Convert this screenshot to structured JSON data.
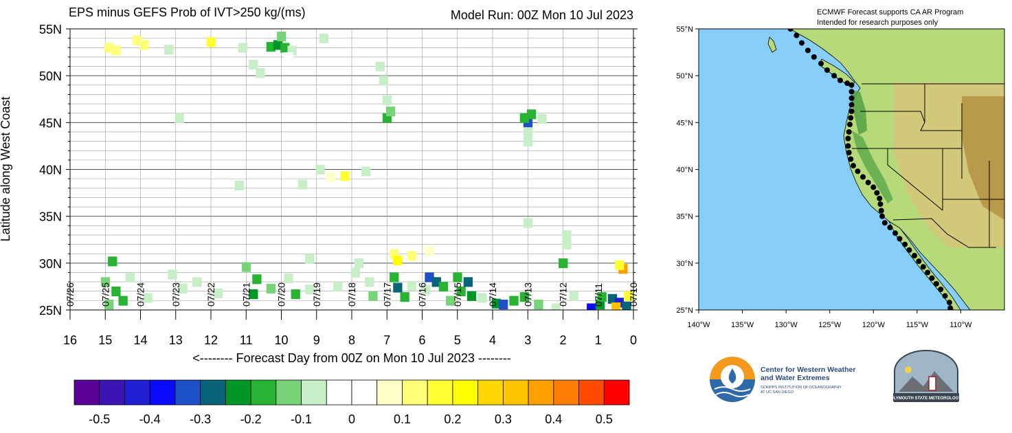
{
  "chart_data": {
    "type": "heatmap",
    "title": "EPS minus GEFS Prob of IVT>250 kg/(ms)",
    "model_run": "Model Run: 00Z Mon 10 Jul 2023",
    "xlabel": "<-------- Forecast Day from 00Z on Mon 10 Jul 2023 --------",
    "ylabel": "Latitude along West Coast",
    "x_ticks": [
      "16",
      "15",
      "14",
      "13",
      "12",
      "11",
      "10",
      "9",
      "8",
      "7",
      "6",
      "5",
      "4",
      "3",
      "2",
      "1",
      "0"
    ],
    "date_labels": [
      "07/26",
      "07/25",
      "07/24",
      "07/23",
      "07/22",
      "07/21",
      "07/20",
      "07/19",
      "07/18",
      "07/17",
      "07/16",
      "07/15",
      "07/14",
      "07/13",
      "07/12",
      "07/11",
      "07/10"
    ],
    "y_ticks": [
      "55N",
      "50N",
      "45N",
      "40N",
      "35N",
      "30N",
      "25N"
    ],
    "xlim": [
      16,
      0
    ],
    "ylim": [
      25,
      55
    ],
    "colorbar": {
      "ticks": [
        "-0.5",
        "-0.4",
        "-0.3",
        "-0.2",
        "-0.1",
        "0",
        "0.1",
        "0.2",
        "0.3",
        "0.4",
        "0.5"
      ],
      "colors": [
        "#5a0096",
        "#3c14b4",
        "#2020d2",
        "#0a0aff",
        "#1e50c8",
        "#0a6478",
        "#009628",
        "#28b432",
        "#78d278",
        "#c8eec8",
        "#ffffff",
        "#ffffff",
        "#ffffc8",
        "#ffff78",
        "#ffff32",
        "#ffff00",
        "#ffd700",
        "#ffc300",
        "#ffa000",
        "#ff7d00",
        "#ff4b00",
        "#ff0000"
      ]
    },
    "cells": [
      {
        "day": 14.9,
        "lat": 53.0,
        "v": 0.1
      },
      {
        "day": 14.7,
        "lat": 52.7,
        "v": 0.1
      },
      {
        "day": 14.1,
        "lat": 53.8,
        "v": 0.1
      },
      {
        "day": 13.9,
        "lat": 53.3,
        "v": 0.1
      },
      {
        "day": 13.2,
        "lat": 52.8,
        "v": -0.1
      },
      {
        "day": 12.0,
        "lat": 53.6,
        "v": 0.15
      },
      {
        "day": 11.1,
        "lat": 53.0,
        "v": -0.1
      },
      {
        "day": 10.8,
        "lat": 51.2,
        "v": -0.1
      },
      {
        "day": 10.6,
        "lat": 50.3,
        "v": -0.1
      },
      {
        "day": 10.3,
        "lat": 53.1,
        "v": -0.18
      },
      {
        "day": 10.1,
        "lat": 53.3,
        "v": -0.22
      },
      {
        "day": 9.9,
        "lat": 53.0,
        "v": -0.18
      },
      {
        "day": 10.0,
        "lat": 54.2,
        "v": -0.12
      },
      {
        "day": 9.7,
        "lat": 52.7,
        "v": -0.08
      },
      {
        "day": 9.8,
        "lat": 52.0,
        "v": -0.05
      },
      {
        "day": 8.8,
        "lat": 54.0,
        "v": -0.08
      },
      {
        "day": 7.2,
        "lat": 51.0,
        "v": -0.08
      },
      {
        "day": 7.1,
        "lat": 49.5,
        "v": -0.08
      },
      {
        "day": 7.0,
        "lat": 47.4,
        "v": -0.1
      },
      {
        "day": 7.0,
        "lat": 45.5,
        "v": -0.2
      },
      {
        "day": 6.9,
        "lat": 46.2,
        "v": -0.12
      },
      {
        "day": 12.9,
        "lat": 45.5,
        "v": -0.08
      },
      {
        "day": 3.0,
        "lat": 45.0,
        "v": -0.32
      },
      {
        "day": 3.1,
        "lat": 45.5,
        "v": -0.2
      },
      {
        "day": 2.9,
        "lat": 45.9,
        "v": -0.18
      },
      {
        "day": 2.6,
        "lat": 45.4,
        "v": -0.1
      },
      {
        "day": 3.0,
        "lat": 44.0,
        "v": -0.08
      },
      {
        "day": 3.0,
        "lat": 43.0,
        "v": -0.08
      },
      {
        "day": 3.0,
        "lat": 34.3,
        "v": -0.08
      },
      {
        "day": 1.9,
        "lat": 33.0,
        "v": -0.1
      },
      {
        "day": 1.9,
        "lat": 32.0,
        "v": -0.08
      },
      {
        "day": 2.0,
        "lat": 30.0,
        "v": -0.2
      },
      {
        "day": 8.9,
        "lat": 40.0,
        "v": -0.08
      },
      {
        "day": 8.6,
        "lat": 39.2,
        "v": 0.08
      },
      {
        "day": 8.2,
        "lat": 39.3,
        "v": 0.15
      },
      {
        "day": 7.6,
        "lat": 39.8,
        "v": -0.08
      },
      {
        "day": 9.4,
        "lat": 38.4,
        "v": -0.08
      },
      {
        "day": 11.2,
        "lat": 38.3,
        "v": -0.08
      },
      {
        "day": 9.2,
        "lat": 30.5,
        "v": -0.1
      },
      {
        "day": 7.8,
        "lat": 30.0,
        "v": -0.1
      },
      {
        "day": 6.8,
        "lat": 31.0,
        "v": 0.12
      },
      {
        "day": 6.7,
        "lat": 30.3,
        "v": 0.2
      },
      {
        "day": 6.3,
        "lat": 30.8,
        "v": 0.1
      },
      {
        "day": 5.8,
        "lat": 31.3,
        "v": 0.08
      },
      {
        "day": 14.8,
        "lat": 30.2,
        "v": -0.18
      },
      {
        "day": 15.0,
        "lat": 28.0,
        "v": -0.15
      },
      {
        "day": 14.7,
        "lat": 27.0,
        "v": -0.2
      },
      {
        "day": 14.5,
        "lat": 26.0,
        "v": -0.2
      },
      {
        "day": 14.9,
        "lat": 25.6,
        "v": -0.15
      },
      {
        "day": 14.3,
        "lat": 28.5,
        "v": -0.1
      },
      {
        "day": 13.8,
        "lat": 26.3,
        "v": -0.1
      },
      {
        "day": 13.1,
        "lat": 28.8,
        "v": -0.08
      },
      {
        "day": 12.8,
        "lat": 27.3,
        "v": -0.08
      },
      {
        "day": 12.4,
        "lat": 28.0,
        "v": -0.08
      },
      {
        "day": 11.8,
        "lat": 26.8,
        "v": -0.08
      },
      {
        "day": 11.0,
        "lat": 29.6,
        "v": -0.15
      },
      {
        "day": 10.7,
        "lat": 28.3,
        "v": -0.18
      },
      {
        "day": 10.8,
        "lat": 26.7,
        "v": -0.22
      },
      {
        "day": 10.3,
        "lat": 27.3,
        "v": -0.12
      },
      {
        "day": 9.8,
        "lat": 28.4,
        "v": -0.1
      },
      {
        "day": 9.6,
        "lat": 26.7,
        "v": -0.2
      },
      {
        "day": 9.2,
        "lat": 27.2,
        "v": -0.08
      },
      {
        "day": 8.4,
        "lat": 27.5,
        "v": -0.08
      },
      {
        "day": 7.9,
        "lat": 29.0,
        "v": -0.08
      },
      {
        "day": 7.5,
        "lat": 28.0,
        "v": -0.1
      },
      {
        "day": 7.4,
        "lat": 26.5,
        "v": -0.12
      },
      {
        "day": 6.8,
        "lat": 28.5,
        "v": -0.2
      },
      {
        "day": 6.7,
        "lat": 27.4,
        "v": -0.3
      },
      {
        "day": 6.5,
        "lat": 26.4,
        "v": -0.2
      },
      {
        "day": 6.3,
        "lat": 27.6,
        "v": -0.1
      },
      {
        "day": 5.8,
        "lat": 28.5,
        "v": -0.32
      },
      {
        "day": 5.6,
        "lat": 28.0,
        "v": -0.28
      },
      {
        "day": 5.4,
        "lat": 27.5,
        "v": -0.2
      },
      {
        "day": 5.9,
        "lat": 27.2,
        "v": -0.1
      },
      {
        "day": 5.0,
        "lat": 28.5,
        "v": -0.2
      },
      {
        "day": 4.9,
        "lat": 27.0,
        "v": -0.2
      },
      {
        "day": 4.7,
        "lat": 28.0,
        "v": -0.3
      },
      {
        "day": 4.6,
        "lat": 26.5,
        "v": -0.22
      },
      {
        "day": 5.2,
        "lat": 26.0,
        "v": -0.12
      },
      {
        "day": 3.9,
        "lat": 25.7,
        "v": -0.22
      },
      {
        "day": 3.7,
        "lat": 25.6,
        "v": -0.35
      },
      {
        "day": 3.4,
        "lat": 26.0,
        "v": -0.2
      },
      {
        "day": 3.1,
        "lat": 26.4,
        "v": -0.2
      },
      {
        "day": 2.7,
        "lat": 25.6,
        "v": -0.15
      },
      {
        "day": 4.3,
        "lat": 26.3,
        "v": -0.1
      },
      {
        "day": 2.2,
        "lat": 25.2,
        "v": -0.1
      },
      {
        "day": 1.7,
        "lat": 26.5,
        "v": -0.1
      },
      {
        "day": 1.2,
        "lat": 25.2,
        "v": -0.38
      },
      {
        "day": 0.95,
        "lat": 25.6,
        "v": -0.25
      },
      {
        "day": 0.9,
        "lat": 26.4,
        "v": -0.2
      },
      {
        "day": 0.6,
        "lat": 26.2,
        "v": -0.3
      },
      {
        "day": 0.4,
        "lat": 25.8,
        "v": -0.45
      },
      {
        "day": 0.2,
        "lat": 25.4,
        "v": -0.3
      },
      {
        "day": 0.5,
        "lat": 25.3,
        "v": 0.3
      },
      {
        "day": 0.3,
        "lat": 29.4,
        "v": 0.35
      },
      {
        "day": 0.4,
        "lat": 29.8,
        "v": 0.15
      },
      {
        "day": 0.15,
        "lat": 26.5,
        "v": 0.18
      }
    ]
  },
  "map": {
    "header_line1": "ECMWF Forecast supports CA AR Program",
    "header_line2": "Intended for research purposes only",
    "lat_ticks": [
      "55°N",
      "50°N",
      "45°N",
      "40°N",
      "35°N",
      "30°N",
      "25°N"
    ],
    "lon_ticks": [
      "140°W",
      "135°W",
      "130°W",
      "125°W",
      "120°W",
      "115°W",
      "110°W"
    ],
    "ocean_color": "#87cefa",
    "land_color": "#b6d97a",
    "points": [
      {
        "lon": -129.5,
        "lat": 55.0
      },
      {
        "lon": -128.8,
        "lat": 54.3
      },
      {
        "lon": -128.2,
        "lat": 53.5
      },
      {
        "lon": -127.5,
        "lat": 52.7
      },
      {
        "lon": -126.8,
        "lat": 52.0
      },
      {
        "lon": -126.0,
        "lat": 51.3
      },
      {
        "lon": -125.3,
        "lat": 50.6
      },
      {
        "lon": -124.5,
        "lat": 50.0
      },
      {
        "lon": -123.8,
        "lat": 49.5
      },
      {
        "lon": -123.0,
        "lat": 49.2
      },
      {
        "lon": -122.5,
        "lat": 49.0
      },
      {
        "lon": -122.5,
        "lat": 48.3
      },
      {
        "lon": -122.5,
        "lat": 47.6
      },
      {
        "lon": -122.5,
        "lat": 46.9
      },
      {
        "lon": -122.5,
        "lat": 46.2
      },
      {
        "lon": -122.6,
        "lat": 45.5
      },
      {
        "lon": -122.7,
        "lat": 44.8
      },
      {
        "lon": -122.8,
        "lat": 44.0
      },
      {
        "lon": -122.9,
        "lat": 43.3
      },
      {
        "lon": -122.9,
        "lat": 42.5
      },
      {
        "lon": -122.8,
        "lat": 41.8
      },
      {
        "lon": -122.6,
        "lat": 41.1
      },
      {
        "lon": -122.3,
        "lat": 40.4
      },
      {
        "lon": -121.8,
        "lat": 39.8
      },
      {
        "lon": -121.2,
        "lat": 39.2
      },
      {
        "lon": -120.6,
        "lat": 38.6
      },
      {
        "lon": -120.0,
        "lat": 38.1
      },
      {
        "lon": -119.6,
        "lat": 37.5
      },
      {
        "lon": -119.3,
        "lat": 36.9
      },
      {
        "lon": -119.2,
        "lat": 36.3
      },
      {
        "lon": -119.1,
        "lat": 35.6
      },
      {
        "lon": -119.0,
        "lat": 35.0
      },
      {
        "lon": -118.7,
        "lat": 34.3
      },
      {
        "lon": -118.1,
        "lat": 33.8
      },
      {
        "lon": -117.5,
        "lat": 33.2
      },
      {
        "lon": -117.0,
        "lat": 32.6
      },
      {
        "lon": -116.4,
        "lat": 32.0
      },
      {
        "lon": -115.9,
        "lat": 31.4
      },
      {
        "lon": -115.3,
        "lat": 30.8
      },
      {
        "lon": -114.8,
        "lat": 30.2
      },
      {
        "lon": -114.3,
        "lat": 29.6
      },
      {
        "lon": -113.8,
        "lat": 29.0
      },
      {
        "lon": -113.3,
        "lat": 28.4
      },
      {
        "lon": -112.8,
        "lat": 27.8
      },
      {
        "lon": -112.3,
        "lat": 27.2
      },
      {
        "lon": -111.8,
        "lat": 26.5
      },
      {
        "lon": -111.3,
        "lat": 25.8
      },
      {
        "lon": -111.2,
        "lat": 25.2
      }
    ]
  },
  "logos": {
    "cw3e_line1": "Center for Western Weather",
    "cw3e_line2": "and Water Extremes",
    "cw3e_line3": "SCRIPPS INSTITUTION OF OCEANOGRAPHY",
    "cw3e_line4": "AT UC SAN DIEGO",
    "psu_text": "PLYMOUTH STATE METEOROLOGY"
  }
}
